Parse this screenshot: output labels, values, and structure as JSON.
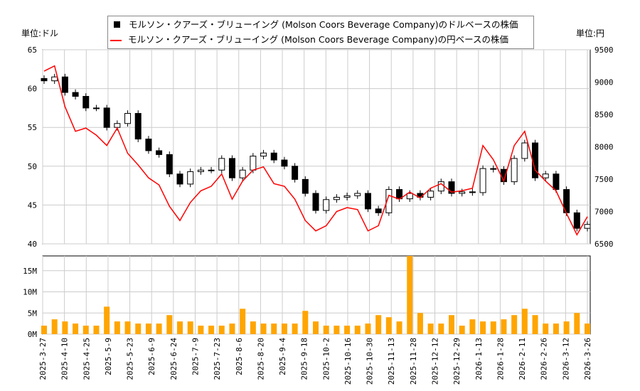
{
  "labels": {
    "left_unit": "単位:ドル",
    "right_unit": "単位:円"
  },
  "legend": [
    {
      "name": "モルソン・クアーズ・ブリューイング (Molson Coors Beverage Company)のドルベースの株価",
      "color": "#000000",
      "symbol": "square"
    },
    {
      "name": "モルソン・クアーズ・ブリューイング (Molson Coors Beverage Company)の円ベースの株価",
      "color": "#ff0000",
      "symbol": "line"
    }
  ],
  "chart_data": {
    "type": "candlestick+line+bar",
    "x_start": "2025-03-27",
    "x_step_days": 7,
    "x_ticks": [
      "2025-3-27",
      "2025-4-10",
      "2025-4-25",
      "2025-5-9",
      "2025-5-23",
      "2025-6-9",
      "2025-6-24",
      "2025-7-9",
      "2025-7-23",
      "2025-8-6",
      "2025-8-20",
      "2025-9-4",
      "2025-9-18",
      "2025-10-2",
      "2025-10-16",
      "2025-10-30",
      "2025-11-13",
      "2025-11-28",
      "2025-12-12",
      "2025-12-29",
      "2026-1-13",
      "2026-1-28",
      "2026-2-11",
      "2026-2-26",
      "2026-3-12",
      "2026-3-26"
    ],
    "usd": {
      "ylim": [
        40,
        65
      ],
      "ticks": [
        40,
        45,
        50,
        55,
        60,
        65
      ],
      "close": [
        61,
        61.5,
        59.5,
        59,
        57.5,
        57.5,
        55,
        55.5,
        56.8,
        53.5,
        52,
        51.5,
        49,
        47.7,
        49.3,
        49.5,
        49.5,
        51,
        48.5,
        49.5,
        51.3,
        51.7,
        50.8,
        50,
        48.3,
        46.5,
        44.3,
        45.7,
        46,
        46.2,
        46.5,
        44.5,
        44,
        47,
        45.8,
        46.5,
        46,
        46.8,
        48,
        46.5,
        46.7,
        46.6,
        49.7,
        49.6,
        48,
        51,
        53,
        48.5,
        49,
        47,
        44,
        42,
        42.5
      ]
    },
    "jpy": {
      "ylim": [
        6500,
        9500
      ],
      "ticks": [
        6500,
        7000,
        7500,
        8000,
        8500,
        9000,
        9500
      ],
      "values": [
        9170,
        9250,
        8620,
        8240,
        8290,
        8180,
        8020,
        8290,
        7900,
        7720,
        7520,
        7410,
        7080,
        6860,
        7140,
        7320,
        7390,
        7580,
        7190,
        7470,
        7640,
        7690,
        7430,
        7390,
        7190,
        6860,
        6700,
        6780,
        7000,
        7060,
        7030,
        6700,
        6780,
        7250,
        7190,
        7300,
        7210,
        7360,
        7430,
        7300,
        7320,
        7360,
        8020,
        7800,
        7470,
        8020,
        8240,
        7640,
        7470,
        7320,
        6970,
        6640,
        6920
      ]
    },
    "volume": {
      "ylim": [
        0,
        18.5
      ],
      "ticks": [
        "0M",
        "5M",
        "10M",
        "15M"
      ],
      "tick_values": [
        0,
        5,
        10,
        15
      ],
      "color": "#ffa500",
      "values_millions": [
        2,
        3.5,
        3,
        2.5,
        2,
        2,
        6.5,
        3,
        3,
        2.5,
        2.5,
        2.5,
        4.5,
        3,
        3,
        2,
        2,
        2,
        2.5,
        6,
        3,
        2.5,
        2.5,
        2.5,
        2.5,
        5.5,
        3,
        2,
        2,
        2,
        2,
        2.5,
        4.5,
        4,
        3,
        18.5,
        5,
        2.5,
        2.5,
        4.5,
        2,
        3.5,
        3,
        3,
        3.5,
        4.5,
        6,
        4.5,
        2.5,
        2.5,
        3,
        5,
        2.5
      ]
    },
    "grid": true
  }
}
